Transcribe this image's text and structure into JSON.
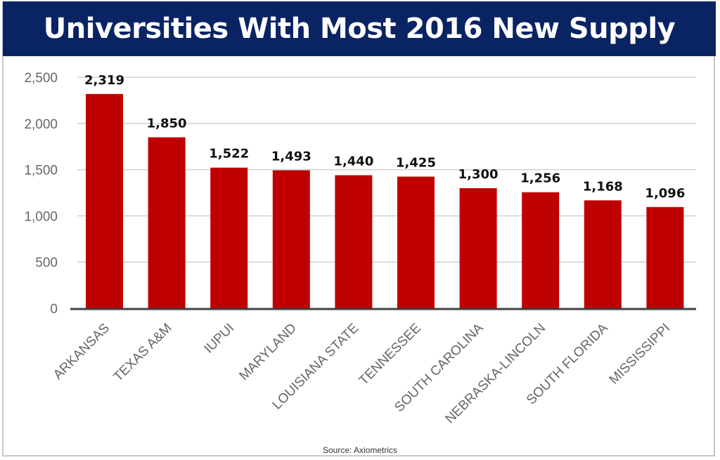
{
  "chart_data": {
    "type": "bar",
    "title": "Universities With Most 2016 New Supply",
    "categories": [
      "ARKANSAS",
      "TEXAS A&M",
      "IUPUI",
      "MARYLAND",
      "LOUISIANA STATE",
      "TENNESSEE",
      "SOUTH CAROLINA",
      "NEBRASKA-LINCOLN",
      "SOUTH FLORIDA",
      "MISSISSIPPI"
    ],
    "values": [
      2319,
      1850,
      1522,
      1493,
      1440,
      1425,
      1300,
      1256,
      1168,
      1096
    ],
    "data_labels": [
      "2,319",
      "1,850",
      "1,522",
      "1,493",
      "1,440",
      "1,425",
      "1,300",
      "1,256",
      "1,168",
      "1,096"
    ],
    "yticks": [
      0,
      500,
      1000,
      1500,
      2000,
      2500
    ],
    "ytick_labels": [
      "0",
      "500",
      "1,000",
      "1,500",
      "2,000",
      "2,500"
    ],
    "ylim": [
      0,
      2500
    ],
    "grid": true,
    "bar_color": "#c00000",
    "header_color": "#0a2463",
    "source": "Source: Axiometrics"
  }
}
